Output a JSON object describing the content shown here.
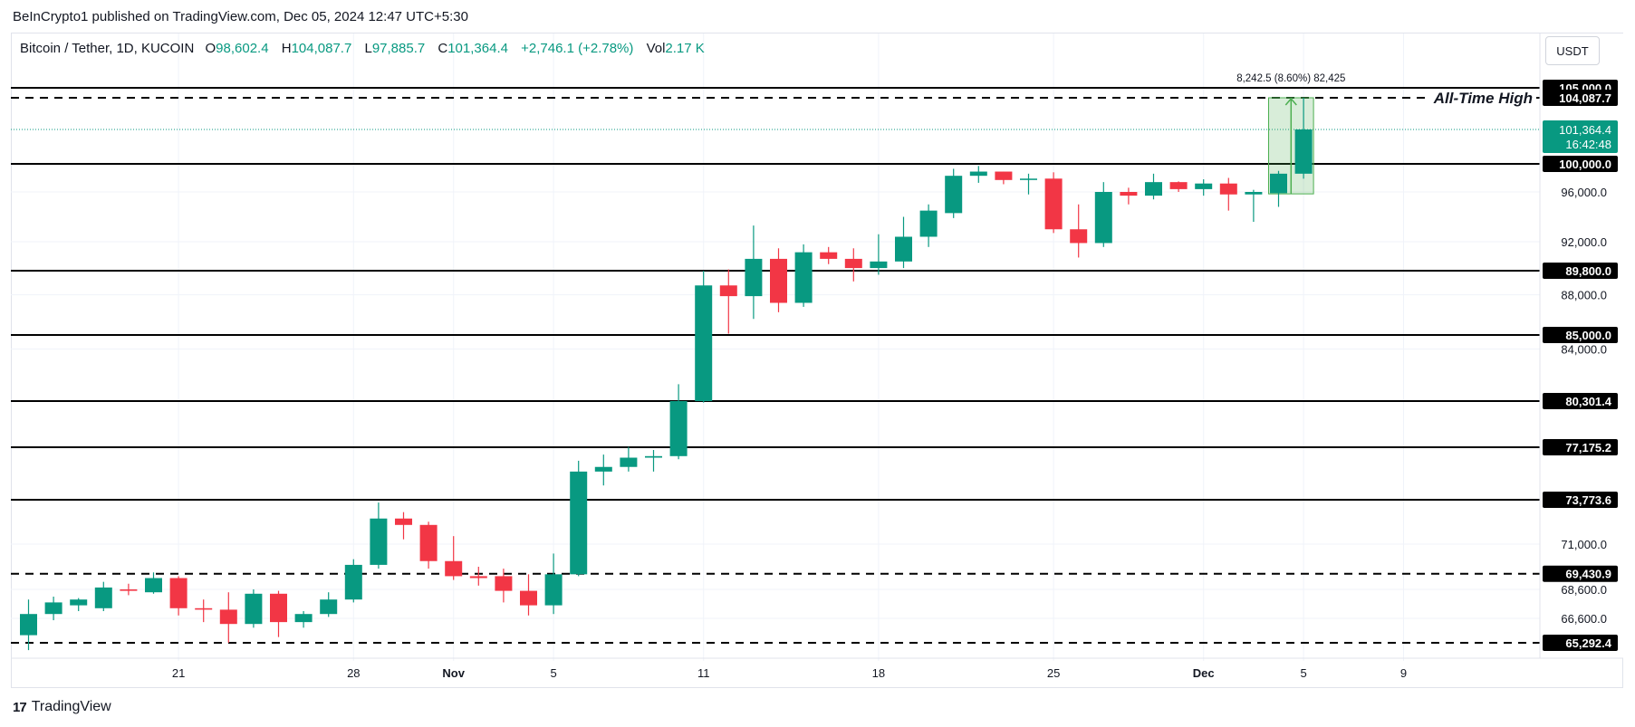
{
  "header": {
    "published": "BeInCrypto1 published on TradingView.com, Dec 05, 2024 12:47 UTC+5:30"
  },
  "legend": {
    "symbol": "Bitcoin / Tether, 1D, KUCOIN",
    "o_label": "O",
    "o_value": "98,602.4",
    "h_label": "H",
    "h_value": "104,087.7",
    "l_label": "L",
    "l_value": "97,885.7",
    "c_label": "C",
    "c_value": "101,364.4",
    "change": "+2,746.1 (+2.78%)",
    "vol_label": "Vol",
    "vol_value": "2.17 K"
  },
  "currency_button": "USDT",
  "footer": {
    "brand": "TradingView",
    "logo": "17"
  },
  "colors": {
    "up": "#089981",
    "down": "#f23645",
    "level": "#000000",
    "measure": "#4caf50"
  },
  "chart_data": {
    "type": "candlestick",
    "title": "Bitcoin / Tether, 1D, KUCOIN",
    "y_axis_ticks": [
      {
        "value": 96000,
        "label": "96,000.0"
      },
      {
        "value": 92000,
        "label": "92,000.0"
      },
      {
        "value": 88000,
        "label": "88,000.0"
      },
      {
        "value": 84000,
        "label": "84,000.0"
      },
      {
        "value": 71000,
        "label": "71,000.0"
      },
      {
        "value": 68600,
        "label": "68,600.0"
      },
      {
        "value": 66600,
        "label": "66,600.0"
      }
    ],
    "x_axis_ticks": [
      {
        "index": 6,
        "label": "21"
      },
      {
        "index": 13,
        "label": "28"
      },
      {
        "index": 17,
        "label": "Nov",
        "bold": true
      },
      {
        "index": 21,
        "label": "5"
      },
      {
        "index": 27,
        "label": "11"
      },
      {
        "index": 34,
        "label": "18"
      },
      {
        "index": 41,
        "label": "25"
      },
      {
        "index": 47,
        "label": "Dec",
        "bold": true
      },
      {
        "index": 51,
        "label": "5"
      },
      {
        "index": 55,
        "label": "9"
      }
    ],
    "candles": [
      {
        "o": 65700,
        "h": 67900,
        "l": 64900,
        "c": 66900
      },
      {
        "o": 66900,
        "h": 68100,
        "l": 66500,
        "c": 67700
      },
      {
        "o": 67500,
        "h": 68000,
        "l": 67100,
        "c": 67900
      },
      {
        "o": 67300,
        "h": 69000,
        "l": 67100,
        "c": 68700
      },
      {
        "o": 68600,
        "h": 68900,
        "l": 68200,
        "c": 68500
      },
      {
        "o": 68400,
        "h": 69500,
        "l": 68300,
        "c": 69200
      },
      {
        "o": 69200,
        "h": 69300,
        "l": 66800,
        "c": 67300
      },
      {
        "o": 67300,
        "h": 67900,
        "l": 66400,
        "c": 67200
      },
      {
        "o": 67200,
        "h": 68400,
        "l": 65300,
        "c": 66300
      },
      {
        "o": 66300,
        "h": 68600,
        "l": 66100,
        "c": 68300
      },
      {
        "o": 68300,
        "h": 68500,
        "l": 65600,
        "c": 66400
      },
      {
        "o": 66400,
        "h": 67100,
        "l": 66100,
        "c": 66900
      },
      {
        "o": 66900,
        "h": 68400,
        "l": 66700,
        "c": 67900
      },
      {
        "o": 67900,
        "h": 70200,
        "l": 67700,
        "c": 69900
      },
      {
        "o": 69900,
        "h": 73600,
        "l": 69700,
        "c": 72600
      },
      {
        "o": 72600,
        "h": 73000,
        "l": 71300,
        "c": 72200
      },
      {
        "o": 72200,
        "h": 72400,
        "l": 69700,
        "c": 70100
      },
      {
        "o": 70100,
        "h": 71500,
        "l": 69100,
        "c": 69300
      },
      {
        "o": 69300,
        "h": 69800,
        "l": 68800,
        "c": 69200
      },
      {
        "o": 69300,
        "h": 69700,
        "l": 67700,
        "c": 68500
      },
      {
        "o": 68500,
        "h": 69400,
        "l": 66800,
        "c": 67500
      },
      {
        "o": 67500,
        "h": 70500,
        "l": 66900,
        "c": 69400
      },
      {
        "o": 69400,
        "h": 76300,
        "l": 69300,
        "c": 75600
      },
      {
        "o": 75600,
        "h": 76700,
        "l": 74700,
        "c": 75900
      },
      {
        "o": 75900,
        "h": 77200,
        "l": 75600,
        "c": 76500
      },
      {
        "o": 76500,
        "h": 77000,
        "l": 75600,
        "c": 76600
      },
      {
        "o": 76600,
        "h": 81500,
        "l": 76400,
        "c": 80300
      },
      {
        "o": 80300,
        "h": 89800,
        "l": 80200,
        "c": 88700
      },
      {
        "o": 88700,
        "h": 89900,
        "l": 85100,
        "c": 87900
      },
      {
        "o": 87900,
        "h": 93300,
        "l": 86200,
        "c": 90700
      },
      {
        "o": 90700,
        "h": 91500,
        "l": 86700,
        "c": 87400
      },
      {
        "o": 87400,
        "h": 91800,
        "l": 87100,
        "c": 91200
      },
      {
        "o": 91200,
        "h": 91600,
        "l": 90300,
        "c": 90700
      },
      {
        "o": 90700,
        "h": 91500,
        "l": 89000,
        "c": 90000
      },
      {
        "o": 90000,
        "h": 92600,
        "l": 89500,
        "c": 90500
      },
      {
        "o": 90500,
        "h": 94000,
        "l": 90000,
        "c": 92400
      },
      {
        "o": 92400,
        "h": 95000,
        "l": 91600,
        "c": 94500
      },
      {
        "o": 94300,
        "h": 99300,
        "l": 93900,
        "c": 98300
      },
      {
        "o": 98300,
        "h": 99700,
        "l": 97300,
        "c": 98900
      },
      {
        "o": 98900,
        "h": 98900,
        "l": 97100,
        "c": 97700
      },
      {
        "o": 97700,
        "h": 98600,
        "l": 95800,
        "c": 97900
      },
      {
        "o": 97900,
        "h": 98800,
        "l": 92700,
        "c": 93000
      },
      {
        "o": 93000,
        "h": 95000,
        "l": 90800,
        "c": 91900
      },
      {
        "o": 91900,
        "h": 97400,
        "l": 91600,
        "c": 96000
      },
      {
        "o": 96000,
        "h": 96600,
        "l": 95000,
        "c": 95700
      },
      {
        "o": 95700,
        "h": 98600,
        "l": 95400,
        "c": 97400
      },
      {
        "o": 97400,
        "h": 97500,
        "l": 96000,
        "c": 96400
      },
      {
        "o": 96400,
        "h": 97800,
        "l": 95700,
        "c": 97200
      },
      {
        "o": 97200,
        "h": 98000,
        "l": 94500,
        "c": 95800
      },
      {
        "o": 95800,
        "h": 96300,
        "l": 93600,
        "c": 96000
      },
      {
        "o": 95900,
        "h": 99000,
        "l": 94800,
        "c": 98600
      },
      {
        "o": 98600,
        "h": 104088,
        "l": 97886,
        "c": 101364
      }
    ],
    "levels": [
      {
        "value": 105000.0,
        "label": "105,000.0",
        "style": "solid"
      },
      {
        "value": 104087.7,
        "label": "104,087.7",
        "style": "dashed"
      },
      {
        "value": 100000.0,
        "label": "100,000.0",
        "style": "solid"
      },
      {
        "value": 89800.0,
        "label": "89,800.0",
        "style": "solid"
      },
      {
        "value": 85000.0,
        "label": "85,000.0",
        "style": "solid"
      },
      {
        "value": 80301.4,
        "label": "80,301.4",
        "style": "solid"
      },
      {
        "value": 77175.2,
        "label": "77,175.2",
        "style": "solid"
      },
      {
        "value": 73773.6,
        "label": "73,773.6",
        "style": "solid"
      },
      {
        "value": 69430.9,
        "label": "69,430.9",
        "style": "dashed"
      },
      {
        "value": 65292.4,
        "label": "65,292.4",
        "style": "dashed"
      }
    ],
    "ath_annotation": "All-Time High",
    "current_price": {
      "value": 101364.4,
      "label": "101,364.4",
      "countdown": "16:42:48"
    },
    "measure": {
      "text": "8,242.5 (8.60%) 82,425",
      "from": 95845,
      "to": 104087.7,
      "start_index": 50,
      "end_index": 51
    }
  }
}
